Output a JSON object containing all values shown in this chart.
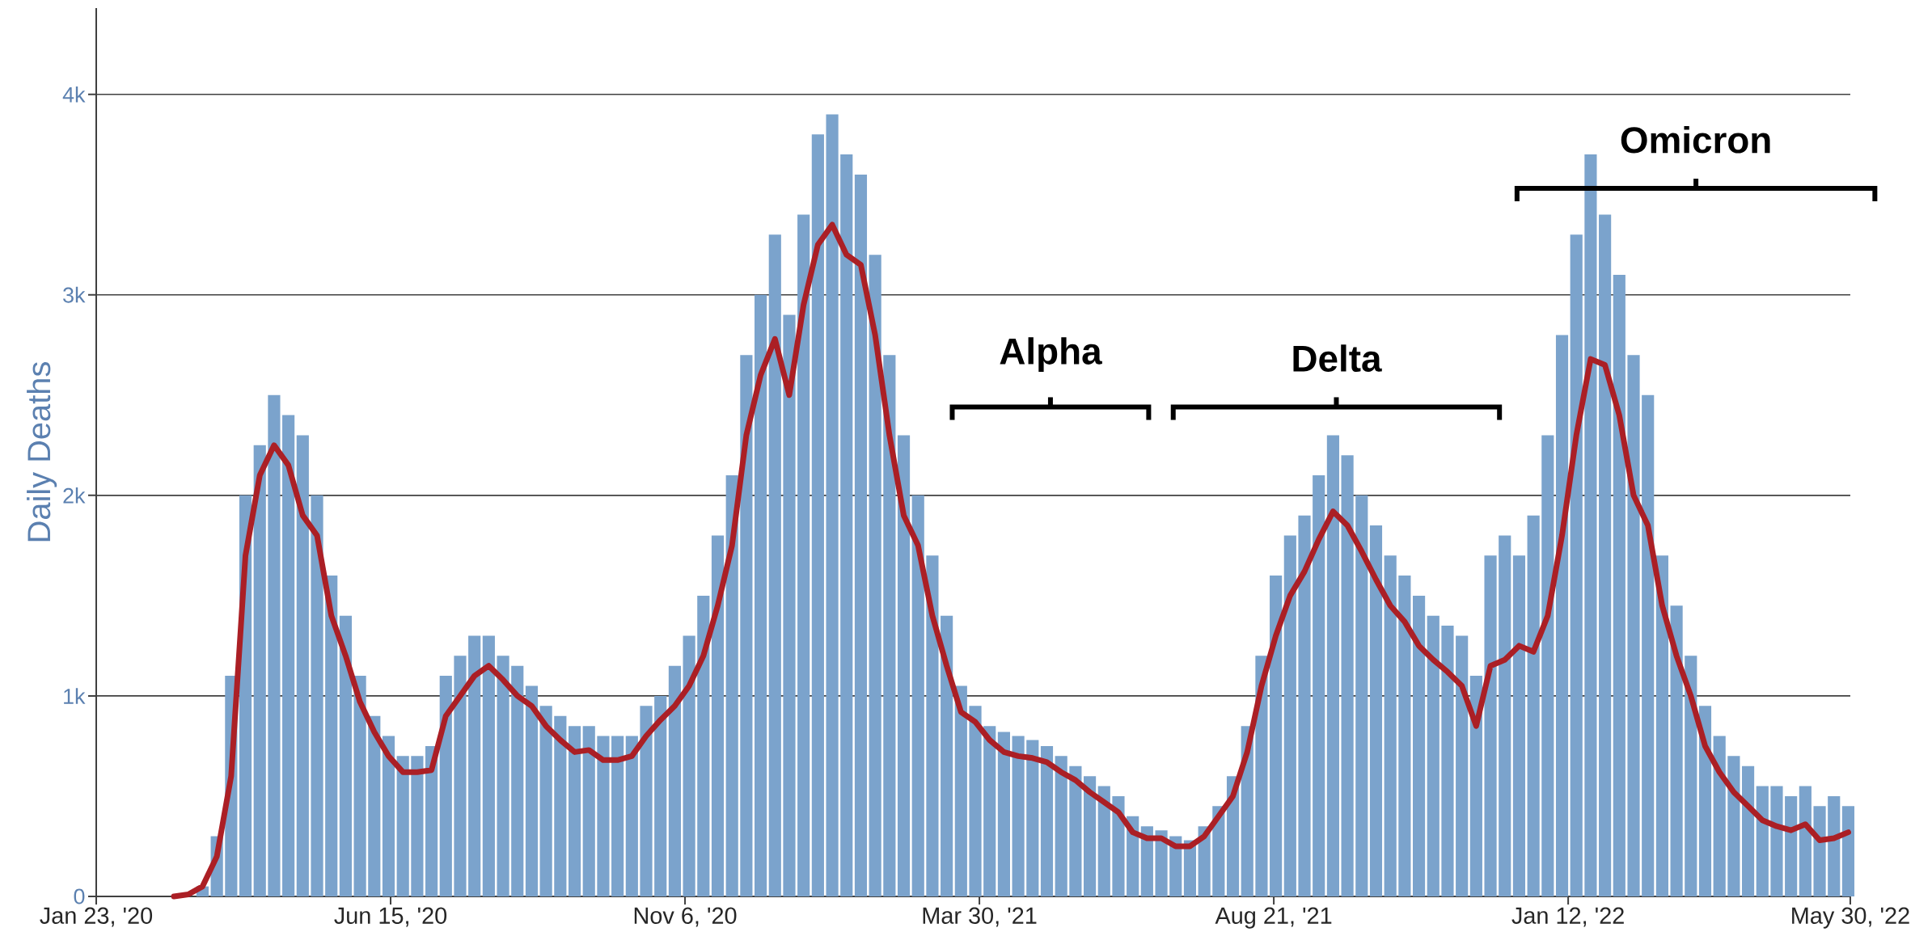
{
  "chart_data": {
    "type": "bar",
    "ylabel": "Daily Deaths",
    "x": [
      "2020-03-01",
      "2020-03-08",
      "2020-03-15",
      "2020-03-22",
      "2020-03-29",
      "2020-04-05",
      "2020-04-12",
      "2020-04-19",
      "2020-04-26",
      "2020-05-03",
      "2020-05-10",
      "2020-05-17",
      "2020-05-24",
      "2020-05-31",
      "2020-06-07",
      "2020-06-14",
      "2020-06-21",
      "2020-06-28",
      "2020-07-05",
      "2020-07-12",
      "2020-07-19",
      "2020-07-26",
      "2020-08-02",
      "2020-08-09",
      "2020-08-16",
      "2020-08-23",
      "2020-08-30",
      "2020-09-06",
      "2020-09-13",
      "2020-09-20",
      "2020-09-27",
      "2020-10-04",
      "2020-10-11",
      "2020-10-18",
      "2020-10-25",
      "2020-11-01",
      "2020-11-08",
      "2020-11-15",
      "2020-11-22",
      "2020-11-29",
      "2020-12-06",
      "2020-12-13",
      "2020-12-20",
      "2020-12-27",
      "2021-01-03",
      "2021-01-10",
      "2021-01-17",
      "2021-01-24",
      "2021-01-31",
      "2021-02-07",
      "2021-02-14",
      "2021-02-21",
      "2021-02-28",
      "2021-03-07",
      "2021-03-14",
      "2021-03-21",
      "2021-03-28",
      "2021-04-04",
      "2021-04-11",
      "2021-04-18",
      "2021-04-25",
      "2021-05-02",
      "2021-05-09",
      "2021-05-16",
      "2021-05-23",
      "2021-05-30",
      "2021-06-06",
      "2021-06-13",
      "2021-06-20",
      "2021-06-27",
      "2021-07-04",
      "2021-07-11",
      "2021-07-18",
      "2021-07-25",
      "2021-08-01",
      "2021-08-08",
      "2021-08-15",
      "2021-08-22",
      "2021-08-29",
      "2021-09-05",
      "2021-09-12",
      "2021-09-19",
      "2021-09-26",
      "2021-10-03",
      "2021-10-10",
      "2021-10-17",
      "2021-10-24",
      "2021-10-31",
      "2021-11-07",
      "2021-11-14",
      "2021-11-21",
      "2021-11-28",
      "2021-12-05",
      "2021-12-12",
      "2021-12-19",
      "2021-12-26",
      "2022-01-02",
      "2022-01-09",
      "2022-01-16",
      "2022-01-23",
      "2022-01-30",
      "2022-02-06",
      "2022-02-13",
      "2022-02-20",
      "2022-02-27",
      "2022-03-06",
      "2022-03-13",
      "2022-03-20",
      "2022-03-27",
      "2022-04-03",
      "2022-04-10",
      "2022-04-17",
      "2022-04-24",
      "2022-05-01",
      "2022-05-08",
      "2022-05-15",
      "2022-05-22",
      "2022-05-29"
    ],
    "series": [
      {
        "color": "#7ba3cc",
        "values": [
          0,
          0,
          50,
          300,
          1100,
          2000,
          2250,
          2500,
          2400,
          2300,
          2000,
          1600,
          1400,
          1100,
          900,
          800,
          700,
          700,
          750,
          1100,
          1200,
          1300,
          1300,
          1200,
          1150,
          1050,
          950,
          900,
          850,
          850,
          800,
          800,
          800,
          950,
          1000,
          1150,
          1300,
          1500,
          1800,
          2100,
          2700,
          3000,
          3300,
          2900,
          3400,
          3800,
          3900,
          3700,
          3600,
          3200,
          2700,
          2300,
          2000,
          1700,
          1400,
          1050,
          950,
          850,
          820,
          800,
          780,
          750,
          700,
          650,
          600,
          550,
          500,
          400,
          350,
          330,
          300,
          280,
          350,
          450,
          600,
          850,
          1200,
          1600,
          1800,
          1900,
          2100,
          2300,
          2200,
          2000,
          1850,
          1700,
          1600,
          1500,
          1400,
          1350,
          1300,
          1100,
          1700,
          1800,
          1700,
          1900,
          2300,
          2800,
          3300,
          3700,
          3400,
          3100,
          2700,
          2500,
          1700,
          1450,
          1200,
          950,
          800,
          700,
          650,
          550,
          550,
          500,
          550,
          450,
          500,
          450
        ]
      },
      {
        "type": "line",
        "color": "#ab1f25",
        "values": [
          0,
          10,
          50,
          200,
          600,
          1700,
          2100,
          2250,
          2150,
          1900,
          1800,
          1400,
          1200,
          970,
          820,
          700,
          620,
          620,
          630,
          900,
          1000,
          1100,
          1150,
          1080,
          1000,
          950,
          850,
          780,
          720,
          730,
          680,
          680,
          700,
          800,
          880,
          950,
          1050,
          1200,
          1450,
          1750,
          2300,
          2600,
          2780,
          2500,
          2950,
          3250,
          3350,
          3200,
          3150,
          2800,
          2300,
          1900,
          1750,
          1400,
          1150,
          920,
          870,
          780,
          720,
          700,
          690,
          670,
          620,
          580,
          520,
          470,
          420,
          320,
          290,
          290,
          250,
          250,
          300,
          400,
          500,
          720,
          1050,
          1300,
          1500,
          1620,
          1780,
          1920,
          1850,
          1720,
          1580,
          1450,
          1370,
          1250,
          1180,
          1120,
          1050,
          850,
          1150,
          1180,
          1250,
          1220,
          1400,
          1800,
          2300,
          2680,
          2650,
          2400,
          2000,
          1850,
          1450,
          1200,
          1000,
          750,
          620,
          520,
          450,
          380,
          350,
          330,
          360,
          280,
          290,
          320
        ]
      }
    ],
    "xlim": [
      "2020-01-23",
      "2022-05-30"
    ],
    "xticks": [
      {
        "value": "2020-01-23",
        "label": "Jan 23, '20"
      },
      {
        "value": "2020-06-15",
        "label": "Jun 15, '20"
      },
      {
        "value": "2020-11-06",
        "label": "Nov 6, '20"
      },
      {
        "value": "2021-03-30",
        "label": "Mar 30, '21"
      },
      {
        "value": "2021-08-21",
        "label": "Aug 21, '21"
      },
      {
        "value": "2022-01-12",
        "label": "Jan 12, '22"
      },
      {
        "value": "2022-05-30",
        "label": "May 30, '22"
      }
    ],
    "ylim": [
      0,
      4430
    ],
    "yticks": [
      0,
      {
        "value": 1000,
        "label": "1k"
      },
      {
        "value": 2000,
        "label": "2k"
      },
      {
        "value": 3000,
        "label": "3k"
      },
      {
        "value": 4000,
        "label": "4k"
      }
    ],
    "grid": "y",
    "annotations": [
      "Alpha",
      "Delta",
      "Omicron"
    ]
  }
}
